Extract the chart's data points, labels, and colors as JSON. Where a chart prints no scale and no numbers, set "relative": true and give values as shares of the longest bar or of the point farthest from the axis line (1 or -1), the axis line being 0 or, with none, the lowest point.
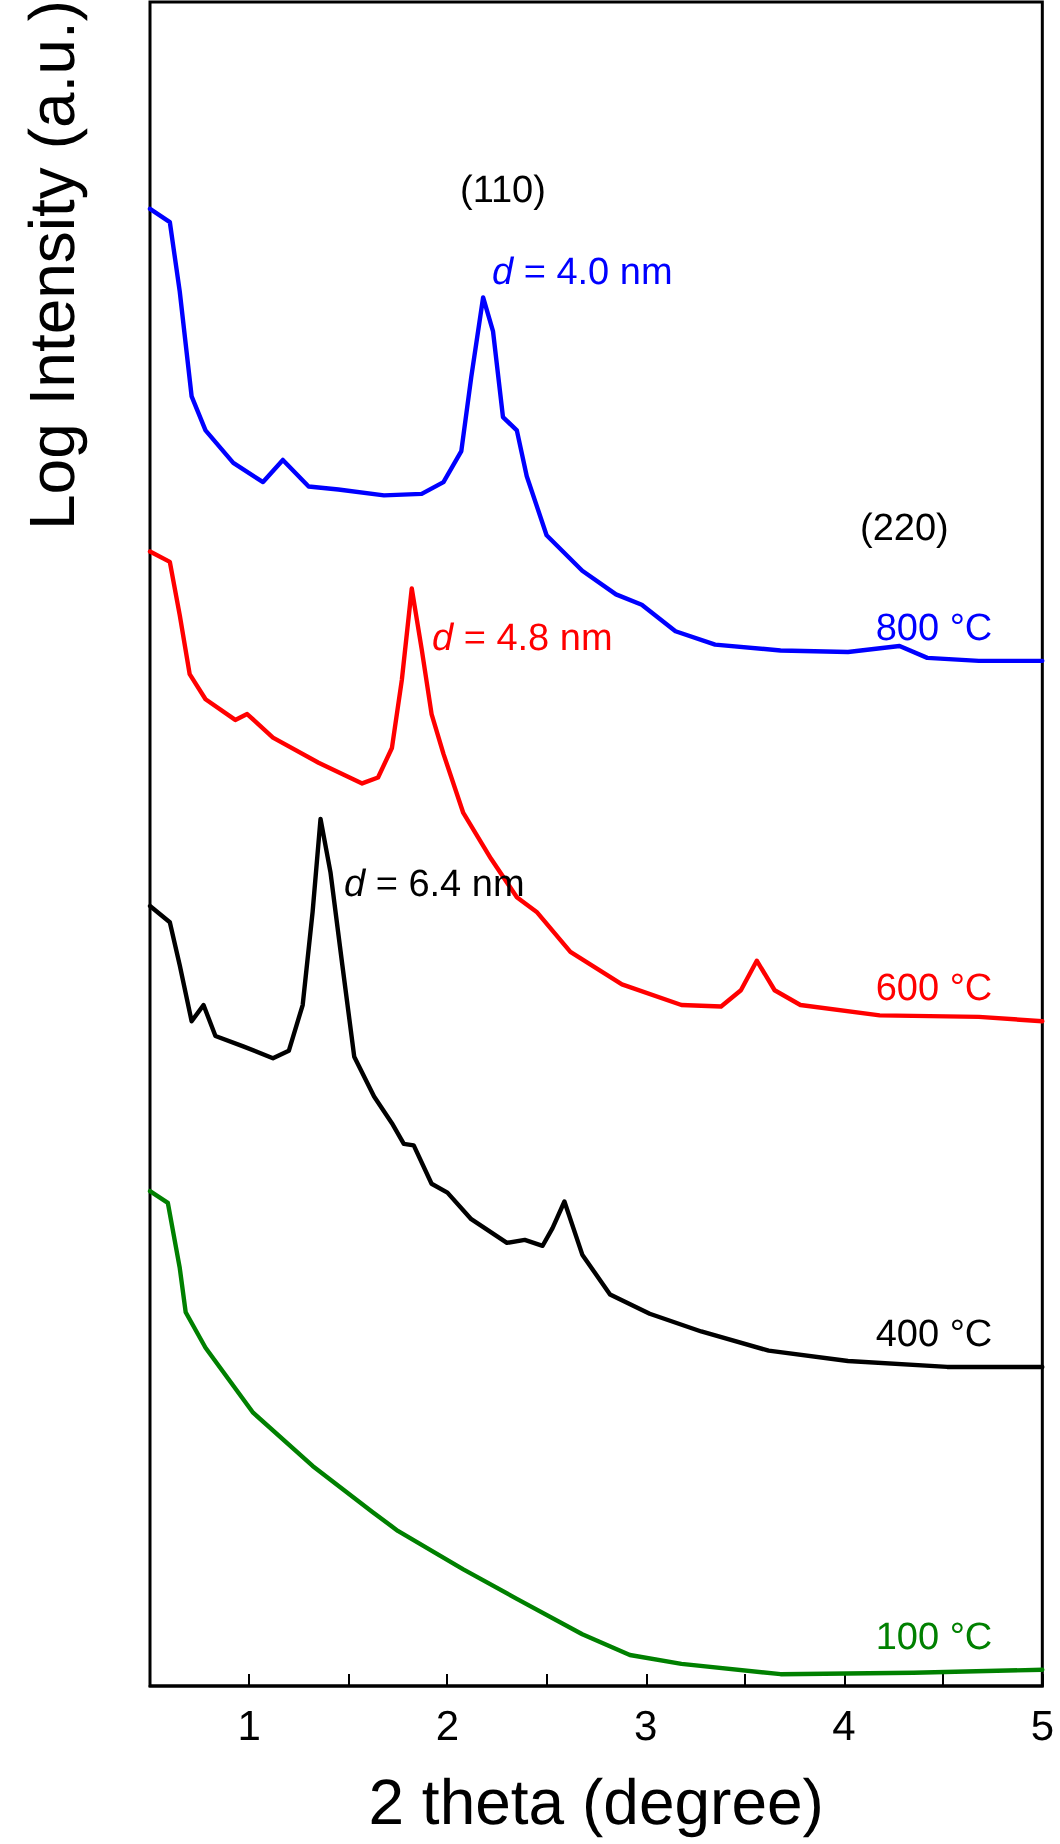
{
  "chart_data": {
    "type": "line",
    "relative": true,
    "xlabel": "2 theta (degree)",
    "ylabel": "Log Intensity (a.u.)",
    "xlim": [
      0.5,
      5
    ],
    "xticks": [
      1,
      {
        "value": 1.5,
        "label": null
      },
      2,
      {
        "value": 2.5,
        "label": null
      },
      3,
      {
        "value": 3.5,
        "label": null
      },
      4,
      {
        "value": 4.5,
        "label": null
      },
      5
    ],
    "grid": false,
    "legend": false,
    "marker": "none",
    "line_style": "solid",
    "series": [
      {
        "name": "800 °C",
        "color": "#0000ff",
        "x": [
          0.5,
          0.6,
          0.65,
          0.71,
          0.78,
          0.92,
          1.07,
          1.17,
          1.3,
          1.45,
          1.68,
          1.87,
          1.98,
          2.07,
          2.12,
          2.18,
          2.23,
          2.28,
          2.35,
          2.4,
          2.5,
          2.68,
          2.85,
          2.98,
          3.15,
          3.35,
          3.68,
          4.02,
          4.28,
          4.42,
          4.68,
          5.0
        ],
        "values": [
          1.0,
          0.991,
          0.944,
          0.873,
          0.85,
          0.828,
          0.815,
          0.83,
          0.812,
          0.81,
          0.806,
          0.807,
          0.815,
          0.836,
          0.886,
          0.94,
          0.917,
          0.859,
          0.85,
          0.819,
          0.779,
          0.755,
          0.739,
          0.732,
          0.714,
          0.705,
          0.701,
          0.7,
          0.704,
          0.696,
          0.694,
          0.694
        ]
      },
      {
        "name": "600 °C",
        "color": "#ff0000",
        "x": [
          0.5,
          0.6,
          0.65,
          0.7,
          0.78,
          0.93,
          0.99,
          1.12,
          1.35,
          1.57,
          1.65,
          1.72,
          1.77,
          1.82,
          1.87,
          1.92,
          1.98,
          2.08,
          2.22,
          2.35,
          2.45,
          2.62,
          2.88,
          3.18,
          3.38,
          3.48,
          3.56,
          3.65,
          3.78,
          4.18,
          4.68,
          5.0
        ],
        "values": [
          0.768,
          0.761,
          0.725,
          0.685,
          0.668,
          0.654,
          0.658,
          0.642,
          0.625,
          0.611,
          0.615,
          0.635,
          0.681,
          0.743,
          0.702,
          0.658,
          0.631,
          0.591,
          0.56,
          0.534,
          0.524,
          0.497,
          0.475,
          0.461,
          0.46,
          0.471,
          0.491,
          0.471,
          0.461,
          0.454,
          0.453,
          0.45
        ]
      },
      {
        "name": "400 °C",
        "color": "#000000",
        "x": [
          0.5,
          0.6,
          0.65,
          0.71,
          0.77,
          0.83,
          0.97,
          1.12,
          1.2,
          1.27,
          1.32,
          1.36,
          1.41,
          1.47,
          1.53,
          1.63,
          1.72,
          1.78,
          1.83,
          1.92,
          2.0,
          2.12,
          2.3,
          2.39,
          2.48,
          2.53,
          2.59,
          2.68,
          2.82,
          3.02,
          3.28,
          3.62,
          4.02,
          4.52,
          5.0
        ],
        "values": [
          0.528,
          0.517,
          0.488,
          0.45,
          0.461,
          0.44,
          0.433,
          0.425,
          0.43,
          0.461,
          0.524,
          0.587,
          0.551,
          0.488,
          0.426,
          0.399,
          0.381,
          0.367,
          0.366,
          0.34,
          0.334,
          0.316,
          0.3,
          0.302,
          0.298,
          0.31,
          0.328,
          0.292,
          0.265,
          0.252,
          0.24,
          0.227,
          0.22,
          0.216,
          0.216
        ]
      },
      {
        "name": "100 °C",
        "color": "#008000",
        "x": [
          0.5,
          0.59,
          0.65,
          0.68,
          0.78,
          1.02,
          1.32,
          1.62,
          1.75,
          2.08,
          2.35,
          2.68,
          2.92,
          3.18,
          3.68,
          4.35,
          5.0
        ],
        "values": [
          0.335,
          0.327,
          0.283,
          0.253,
          0.229,
          0.185,
          0.149,
          0.118,
          0.105,
          0.079,
          0.059,
          0.035,
          0.021,
          0.015,
          0.008,
          0.009,
          0.011
        ]
      }
    ],
    "annotations": [
      "(110)",
      "d = 4.0 nm",
      "(220)",
      "d = 4.8 nm",
      "d = 6.4 nm"
    ]
  }
}
